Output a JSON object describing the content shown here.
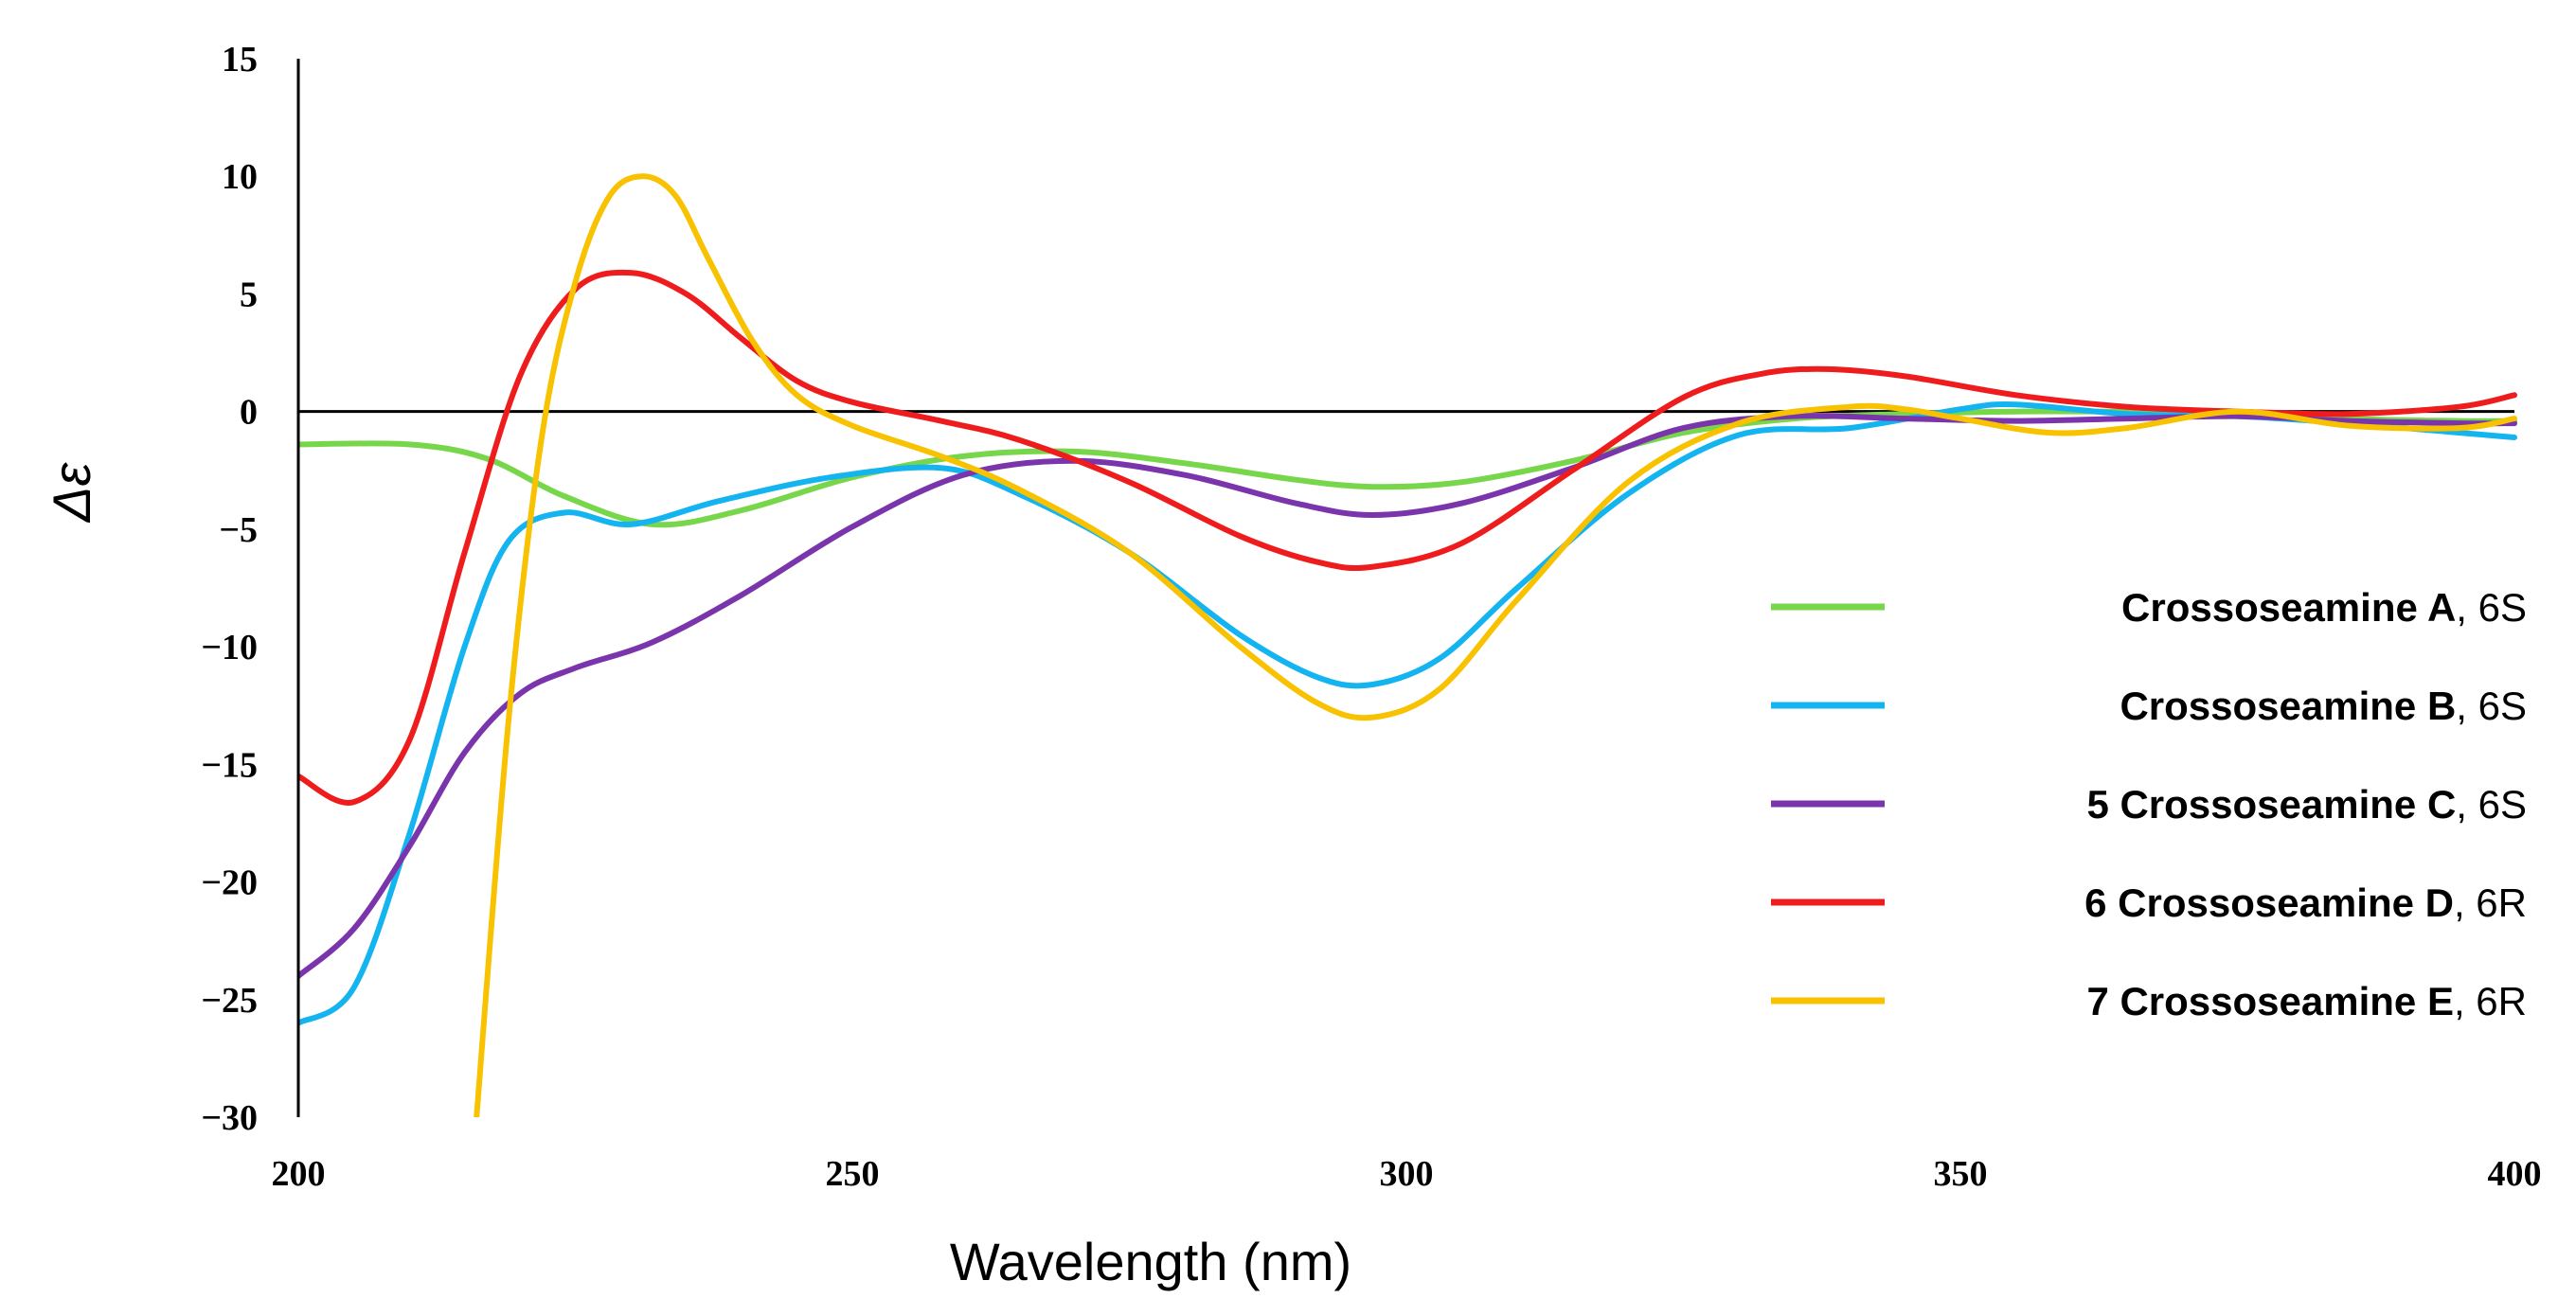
{
  "chart_data": {
    "type": "line",
    "title": "",
    "xlabel": "Wavelength (nm)",
    "ylabel": "Δε",
    "xlim": [
      200,
      400
    ],
    "ylim": [
      -30,
      15
    ],
    "xticks": [
      200,
      250,
      300,
      350,
      400
    ],
    "yticks": [
      15,
      10,
      5,
      0,
      -5,
      -10,
      -15,
      -20,
      -25,
      -30
    ],
    "ytick_labels": [
      "15",
      "10",
      "5",
      "0",
      "−5",
      "−10",
      "−15",
      "−20",
      "−25",
      "−30"
    ],
    "grid": false,
    "legend_position": "right",
    "series": [
      {
        "name": "Crossoseamine A",
        "legend_number": "",
        "config": "6S",
        "color": "#78d64b",
        "x": [
          200,
          210,
          217,
          224,
          232,
          240,
          250,
          260,
          270,
          280,
          290,
          297,
          305,
          315,
          325,
          335,
          345,
          355,
          365,
          375,
          385,
          395,
          400
        ],
        "y": [
          -1.4,
          -1.4,
          -2.0,
          -3.6,
          -4.8,
          -4.2,
          -2.8,
          -1.9,
          -1.7,
          -2.2,
          -2.9,
          -3.2,
          -3.0,
          -2.1,
          -0.9,
          -0.3,
          -0.1,
          0.0,
          0.0,
          0.0,
          -0.3,
          -0.4,
          -0.4
        ]
      },
      {
        "name": "Crossoseamine B",
        "legend_number": "",
        "config": "6S",
        "color": "#14b4f0",
        "x": [
          200,
          205,
          210,
          215,
          219,
          224,
          230,
          238,
          248,
          258,
          265,
          275,
          285,
          292,
          297,
          303,
          310,
          320,
          330,
          340,
          350,
          355,
          365,
          375,
          385,
          395,
          400
        ],
        "y": [
          -26.0,
          -24.5,
          -18.0,
          -10.0,
          -5.5,
          -4.3,
          -4.8,
          -3.8,
          -2.8,
          -2.4,
          -3.5,
          -6.0,
          -9.5,
          -11.3,
          -11.6,
          -10.5,
          -7.5,
          -3.5,
          -1.0,
          -0.7,
          0.1,
          0.3,
          -0.1,
          -0.2,
          -0.5,
          -0.9,
          -1.1
        ]
      },
      {
        "name": "Crossoseamine C",
        "legend_number": "5",
        "config": "6S",
        "color": "#7b35ac",
        "x": [
          200,
          205,
          210,
          215,
          220,
          225,
          232,
          240,
          250,
          260,
          270,
          280,
          290,
          297,
          305,
          315,
          325,
          335,
          345,
          355,
          365,
          375,
          385,
          395,
          400
        ],
        "y": [
          -24.0,
          -22.0,
          -18.5,
          -14.5,
          -12.0,
          -10.9,
          -9.8,
          -7.8,
          -4.9,
          -2.7,
          -2.1,
          -2.7,
          -3.9,
          -4.4,
          -3.9,
          -2.4,
          -0.7,
          -0.2,
          -0.3,
          -0.4,
          -0.3,
          -0.2,
          -0.4,
          -0.5,
          -0.5
        ]
      },
      {
        "name": "Crossoseamine D",
        "legend_number": "6",
        "config": "6R",
        "color": "#ee1c1c",
        "x": [
          200,
          205,
          210,
          215,
          220,
          225,
          230,
          235,
          240,
          245,
          250,
          258,
          265,
          275,
          285,
          292,
          297,
          305,
          315,
          325,
          332,
          338,
          345,
          355,
          365,
          375,
          385,
          395,
          400
        ],
        "y": [
          -15.5,
          -16.6,
          -14.0,
          -6.0,
          1.5,
          5.2,
          5.9,
          5.0,
          3.1,
          1.3,
          0.4,
          -0.4,
          -1.2,
          -3.0,
          -5.3,
          -6.4,
          -6.6,
          -5.6,
          -2.5,
          0.6,
          1.6,
          1.8,
          1.5,
          0.7,
          0.2,
          0.0,
          -0.1,
          0.2,
          0.7
        ]
      },
      {
        "name": "Crossoseamine E",
        "legend_number": "7",
        "config": "6R",
        "color": "#f8c200",
        "x": [
          216,
          219,
          222,
          225,
          228,
          231,
          234,
          237,
          241,
          245,
          250,
          258,
          265,
          275,
          285,
          292,
          297,
          303,
          310,
          320,
          330,
          340,
          345,
          350,
          358,
          365,
          375,
          385,
          395,
          400
        ],
        "y": [
          -30.5,
          -13.0,
          -1.0,
          5.5,
          9.1,
          10.0,
          9.2,
          6.5,
          3.0,
          0.7,
          -0.6,
          -1.9,
          -3.3,
          -6.0,
          -10.0,
          -12.4,
          -13.0,
          -11.8,
          -8.0,
          -3.0,
          -0.5,
          0.2,
          0.1,
          -0.3,
          -0.9,
          -0.7,
          0.0,
          -0.6,
          -0.7,
          -0.3
        ]
      }
    ]
  }
}
